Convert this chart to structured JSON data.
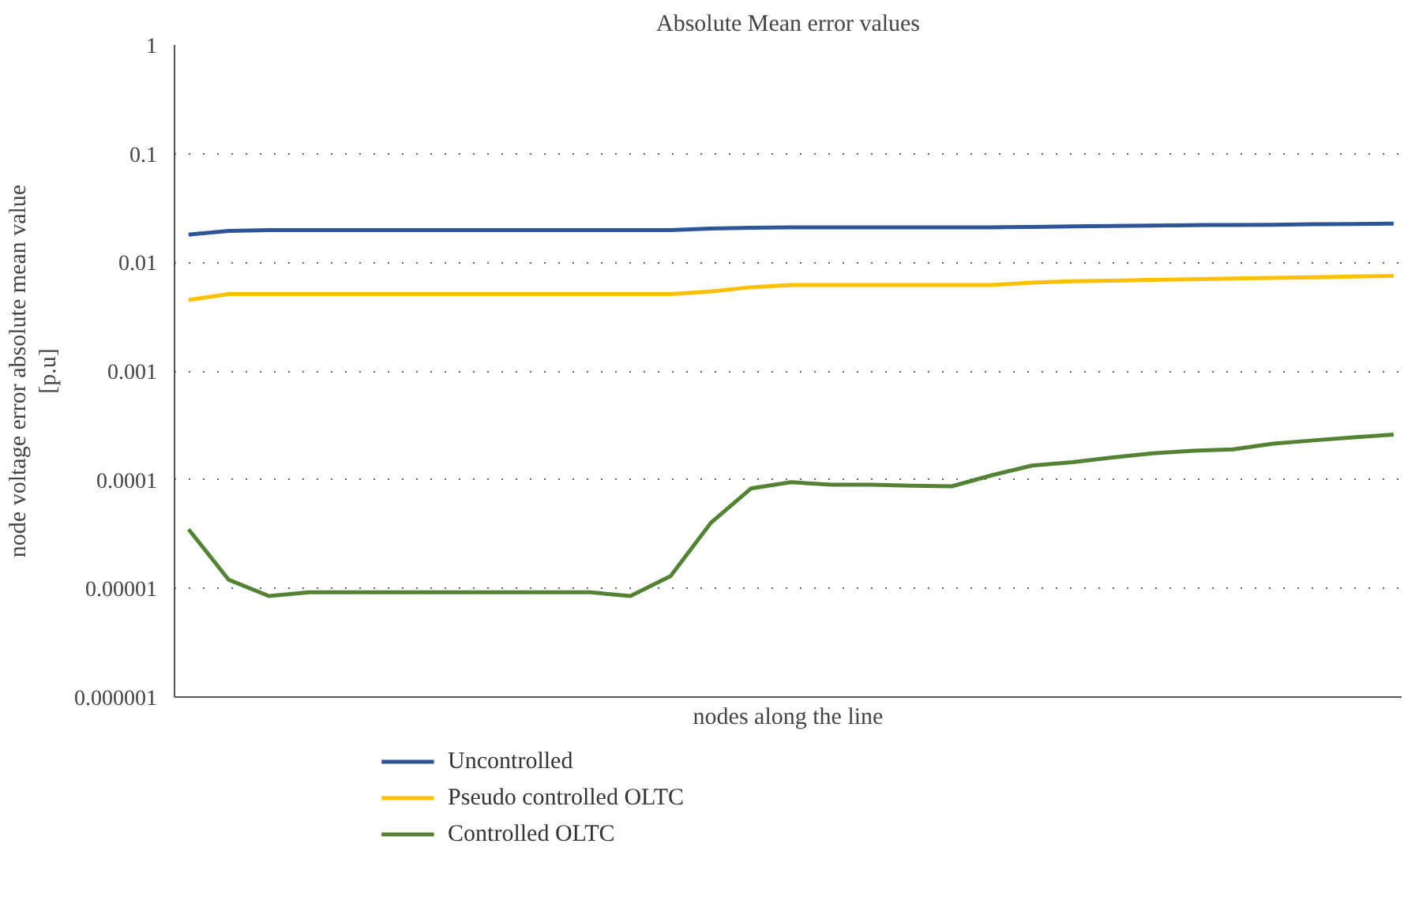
{
  "chart_data": {
    "type": "line",
    "title": "Absolute Mean error values",
    "xlabel": "nodes along the line",
    "ylabel": "node voltage error absolute mean value\n[p.u]",
    "categories": [
      null,
      null,
      null,
      null,
      null,
      null,
      null,
      null,
      null,
      null,
      null,
      null,
      null,
      null,
      null,
      null,
      null,
      null,
      null,
      null,
      null,
      null,
      null,
      null,
      null,
      null,
      null,
      null,
      null,
      null,
      null
    ],
    "log": "y",
    "ylim": [
      1e-06,
      1
    ],
    "yticks": [
      {
        "value": 1e-06,
        "label": "0.000001"
      },
      {
        "value": 1e-05,
        "label": "0.00001"
      },
      {
        "value": 0.0001,
        "label": "0.0001"
      },
      {
        "value": 0.001,
        "label": "0.001"
      },
      {
        "value": 0.01,
        "label": "0.01"
      },
      {
        "value": 0.1,
        "label": "0.1"
      },
      {
        "value": 1,
        "label": "1"
      }
    ],
    "grid": "y",
    "legend": "bottom",
    "line_style": "solid",
    "series": [
      {
        "name": "Uncontrolled",
        "color": "#2e5597",
        "values": [
          0.018,
          0.0195,
          0.0198,
          0.0198,
          0.0198,
          0.0198,
          0.0198,
          0.0198,
          0.0198,
          0.0198,
          0.0198,
          0.0198,
          0.0198,
          0.0205,
          0.0208,
          0.021,
          0.021,
          0.021,
          0.021,
          0.021,
          0.021,
          0.0212,
          0.0214,
          0.0216,
          0.0218,
          0.022,
          0.0221,
          0.0222,
          0.0224,
          0.0225,
          0.0227
        ]
      },
      {
        "name": "Pseudo controlled OLTC",
        "color": "#ffc000",
        "values": [
          0.0045,
          0.0051,
          0.0051,
          0.0051,
          0.0051,
          0.0051,
          0.0051,
          0.0051,
          0.0051,
          0.0051,
          0.0051,
          0.0051,
          0.0051,
          0.0054,
          0.0059,
          0.0062,
          0.0062,
          0.0062,
          0.0062,
          0.0062,
          0.0062,
          0.0065,
          0.0067,
          0.0068,
          0.0069,
          0.007,
          0.0071,
          0.0072,
          0.0073,
          0.0074,
          0.0075
        ]
      },
      {
        "name": "Controlled OLTC",
        "color": "#548235",
        "values": [
          3.5e-05,
          1.2e-05,
          8.5e-06,
          9.2e-06,
          9.2e-06,
          9.2e-06,
          9.2e-06,
          9.2e-06,
          9.2e-06,
          9.2e-06,
          9.2e-06,
          8.5e-06,
          1.3e-05,
          4e-05,
          8.3e-05,
          9.5e-05,
          9e-05,
          9e-05,
          8.8e-05,
          8.7e-05,
          0.00011,
          0.000135,
          0.000145,
          0.00016,
          0.000175,
          0.000185,
          0.00019,
          0.000215,
          0.00023,
          0.000245,
          0.00026
        ]
      }
    ]
  }
}
